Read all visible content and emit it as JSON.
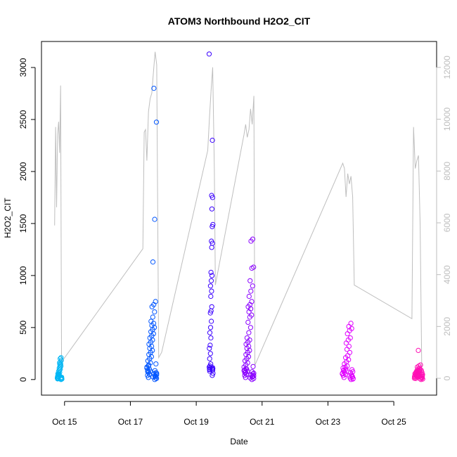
{
  "chart_data": {
    "type": "scatter",
    "title": "ATOM3 Northbound H2O2_CIT",
    "xlabel": "Date",
    "ylabel": "H2O2_CIT",
    "x_ticks": [
      "Oct 15",
      "Oct 17",
      "Oct 19",
      "Oct 21",
      "Oct 23",
      "Oct 25"
    ],
    "y_ticks": [
      0,
      500,
      1000,
      1500,
      2000,
      2500,
      3000
    ],
    "y2_ticks": [
      0,
      2000,
      4000,
      6000,
      8000,
      10000,
      12000
    ],
    "xlim_days": [
      14.3,
      26.3
    ],
    "ylim": [
      -150,
      3250
    ],
    "y2lim": [
      -650,
      13000
    ],
    "colors": {
      "gray_line": "#bebebe",
      "point_gradient": [
        "#00b7f5",
        "#0055ff",
        "#3a00ff",
        "#8a00ff",
        "#e000ff",
        "#ff0fb4"
      ]
    },
    "flights": [
      {
        "day": 14.85,
        "width": 0.14,
        "color": "#00b7f5",
        "points": [
          0,
          5,
          10,
          15,
          20,
          25,
          30,
          35,
          40,
          45,
          50,
          55,
          60,
          70,
          80,
          90,
          100,
          110,
          120,
          130,
          140,
          150,
          160,
          170,
          185,
          200,
          210,
          15,
          8,
          22,
          33,
          12,
          6
        ]
      },
      {
        "day": 17.65,
        "width": 0.3,
        "color": "#0055ff",
        "points": [
          0,
          10,
          20,
          30,
          40,
          50,
          60,
          70,
          80,
          90,
          100,
          120,
          140,
          160,
          180,
          200,
          220,
          240,
          260,
          280,
          300,
          320,
          340,
          360,
          380,
          400,
          420,
          440,
          460,
          480,
          500,
          520,
          540,
          560,
          600,
          650,
          700,
          720,
          750,
          1130,
          1540,
          2475,
          2800,
          15,
          25,
          35,
          45,
          55,
          65,
          75,
          85,
          110,
          130,
          150
        ]
      },
      {
        "day": 19.45,
        "width": 0.12,
        "color": "#3a00ff",
        "points": [
          40,
          60,
          80,
          90,
          100,
          110,
          120,
          130,
          150,
          200,
          250,
          300,
          330,
          400,
          450,
          500,
          560,
          640,
          660,
          700,
          800,
          850,
          900,
          950,
          1000,
          1030,
          1270,
          1310,
          1330,
          1470,
          1490,
          1640,
          1750,
          1770,
          2300,
          3130,
          100,
          105,
          95,
          115
        ]
      },
      {
        "day": 20.6,
        "width": 0.3,
        "color": "#8a00ff",
        "points": [
          0,
          10,
          20,
          30,
          40,
          50,
          60,
          70,
          80,
          90,
          100,
          120,
          140,
          160,
          180,
          200,
          220,
          240,
          260,
          280,
          300,
          320,
          340,
          360,
          380,
          400,
          450,
          500,
          550,
          600,
          620,
          650,
          680,
          700,
          720,
          750,
          800,
          850,
          900,
          950,
          1070,
          1080,
          1330,
          1350,
          15,
          25,
          35,
          45,
          55,
          65,
          75,
          85,
          105,
          125
        ]
      },
      {
        "day": 23.6,
        "width": 0.34,
        "color": "#e000ff",
        "points": [
          0,
          10,
          20,
          30,
          40,
          50,
          60,
          70,
          80,
          90,
          100,
          110,
          120,
          130,
          150,
          170,
          190,
          210,
          230,
          260,
          290,
          320,
          350,
          380,
          400,
          440,
          470,
          490,
          510,
          540,
          5,
          15,
          25,
          35,
          45,
          55,
          65,
          75,
          85,
          95
        ]
      },
      {
        "day": 25.75,
        "width": 0.26,
        "color": "#ff0fb4",
        "points": [
          0,
          5,
          10,
          15,
          20,
          25,
          30,
          35,
          40,
          45,
          50,
          55,
          60,
          65,
          70,
          75,
          80,
          85,
          90,
          95,
          100,
          110,
          120,
          130,
          140,
          280,
          8,
          18,
          28,
          38,
          48,
          58,
          68,
          78,
          88,
          12,
          22,
          32,
          42,
          52
        ]
      }
    ],
    "gray_series": [
      {
        "day": 14.7,
        "y2": 5900
      },
      {
        "day": 14.73,
        "y2": 9700
      },
      {
        "day": 14.76,
        "y2": 6600
      },
      {
        "day": 14.79,
        "y2": 9400
      },
      {
        "day": 14.82,
        "y2": 9900
      },
      {
        "day": 14.85,
        "y2": 8700
      },
      {
        "day": 14.88,
        "y2": 11300
      },
      {
        "day": 14.91,
        "y2": 300
      },
      {
        "day": 14.95,
        "y2": 700
      },
      {
        "day": 17.38,
        "y2": 5000
      },
      {
        "day": 17.42,
        "y2": 9500
      },
      {
        "day": 17.46,
        "y2": 9600
      },
      {
        "day": 17.5,
        "y2": 8400
      },
      {
        "day": 17.55,
        "y2": 10300
      },
      {
        "day": 17.6,
        "y2": 10800
      },
      {
        "day": 17.65,
        "y2": 11000
      },
      {
        "day": 17.7,
        "y2": 11800
      },
      {
        "day": 17.75,
        "y2": 12600
      },
      {
        "day": 17.8,
        "y2": 12100
      },
      {
        "day": 17.86,
        "y2": 800
      },
      {
        "day": 17.95,
        "y2": 1000
      },
      {
        "day": 19.35,
        "y2": 8800
      },
      {
        "day": 19.4,
        "y2": 10000
      },
      {
        "day": 19.45,
        "y2": 11100
      },
      {
        "day": 19.5,
        "y2": 12000
      },
      {
        "day": 19.55,
        "y2": 8000
      },
      {
        "day": 19.58,
        "y2": 3600
      },
      {
        "day": 20.45,
        "y2": 9400
      },
      {
        "day": 20.5,
        "y2": 9800
      },
      {
        "day": 20.55,
        "y2": 9300
      },
      {
        "day": 20.6,
        "y2": 9600
      },
      {
        "day": 20.65,
        "y2": 10400
      },
      {
        "day": 20.7,
        "y2": 9800
      },
      {
        "day": 20.75,
        "y2": 10900
      },
      {
        "day": 20.78,
        "y2": 500
      },
      {
        "day": 23.45,
        "y2": 8300
      },
      {
        "day": 23.5,
        "y2": 8100
      },
      {
        "day": 23.55,
        "y2": 7000
      },
      {
        "day": 23.6,
        "y2": 7900
      },
      {
        "day": 23.65,
        "y2": 7500
      },
      {
        "day": 23.7,
        "y2": 7800
      },
      {
        "day": 23.75,
        "y2": 7000
      },
      {
        "day": 23.8,
        "y2": 3600
      },
      {
        "day": 25.55,
        "y2": 2300
      },
      {
        "day": 25.6,
        "y2": 9700
      },
      {
        "day": 25.65,
        "y2": 8100
      },
      {
        "day": 25.7,
        "y2": 8400
      },
      {
        "day": 25.75,
        "y2": 8600
      },
      {
        "day": 25.8,
        "y2": 5900
      },
      {
        "day": 25.85,
        "y2": 300
      }
    ]
  }
}
